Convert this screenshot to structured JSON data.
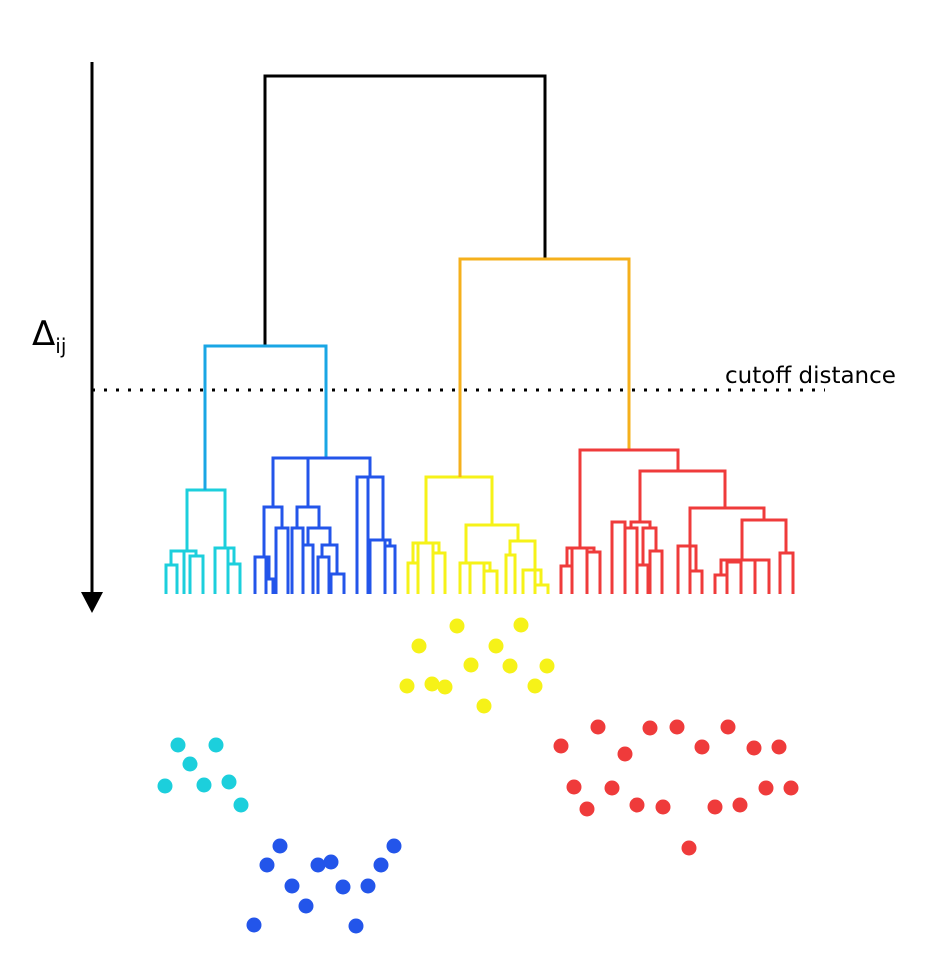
{
  "axis_label": {
    "symbol": "Δ",
    "subscript": "ij"
  },
  "cutoff_label": "cutoff distance",
  "colors": {
    "root": "#000000",
    "cyan": "#1ccfdc",
    "blue": "#2355ea",
    "yellow": "#f6f218",
    "red": "#ef3b3b",
    "cyan_blue_join": "#1aa6e4",
    "yellow_red_join": "#f5b01c"
  },
  "clusters": [
    {
      "name": "cyan",
      "color": "#1ccfdc",
      "points": 7
    },
    {
      "name": "blue",
      "color": "#2355ea",
      "points": 13
    },
    {
      "name": "yellow",
      "color": "#f6f218",
      "points": 13
    },
    {
      "name": "red",
      "color": "#ef3b3b",
      "points": 20
    }
  ]
}
